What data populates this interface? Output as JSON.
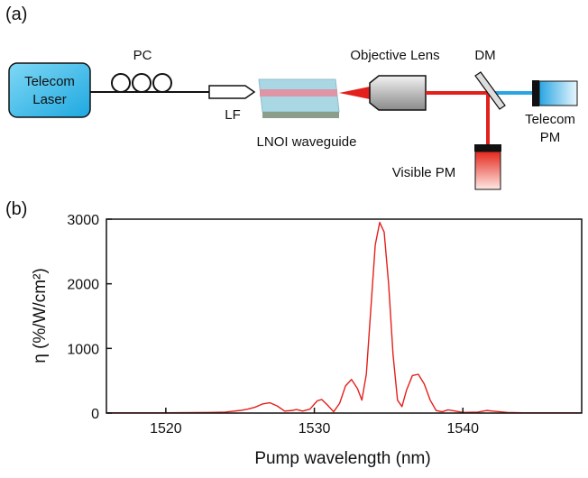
{
  "diagram": {
    "panel_label": "(a)",
    "laser_label": [
      "Telecom",
      "Laser"
    ],
    "pc_label": "PC",
    "lf_label": "LF",
    "waveguide_label": "LNOI waveguide",
    "lens_label": "Objective Lens",
    "dm_label": "DM",
    "telecom_pm_label": [
      "Telecom",
      "PM"
    ],
    "visible_pm_label": "Visible PM"
  },
  "chart_data": {
    "type": "line",
    "panel_label": "(b)",
    "xlabel": "Pump wavelength (nm)",
    "ylabel": "η (%/W/cm²)",
    "color": "#e3201b",
    "x": [
      1516,
      1520,
      1522,
      1523,
      1524,
      1525,
      1525.5,
      1526,
      1526.5,
      1527,
      1527.5,
      1528,
      1528.5,
      1528.8,
      1529.2,
      1529.7,
      1530.2,
      1530.5,
      1530.9,
      1531.3,
      1531.7,
      1532.1,
      1532.5,
      1532.9,
      1533.2,
      1533.5,
      1533.8,
      1534.1,
      1534.4,
      1534.7,
      1535,
      1535.3,
      1535.6,
      1535.9,
      1536.2,
      1536.6,
      1537,
      1537.4,
      1537.8,
      1538.2,
      1538.6,
      1539,
      1539.5,
      1540,
      1541,
      1541.6,
      1542,
      1543,
      1544,
      1548
    ],
    "values": [
      5,
      5,
      8,
      10,
      15,
      40,
      60,
      90,
      140,
      160,
      110,
      30,
      40,
      55,
      30,
      60,
      190,
      210,
      120,
      20,
      150,
      420,
      520,
      380,
      200,
      600,
      1600,
      2600,
      2950,
      2800,
      2000,
      900,
      200,
      100,
      350,
      580,
      600,
      450,
      200,
      40,
      20,
      50,
      30,
      10,
      15,
      40,
      30,
      10,
      5,
      5
    ],
    "xlim": [
      1516,
      1548
    ],
    "xticks": [
      1520,
      1530,
      1540
    ],
    "ylim": [
      0,
      3000
    ],
    "yticks": [
      0,
      1000,
      2000,
      3000
    ]
  }
}
